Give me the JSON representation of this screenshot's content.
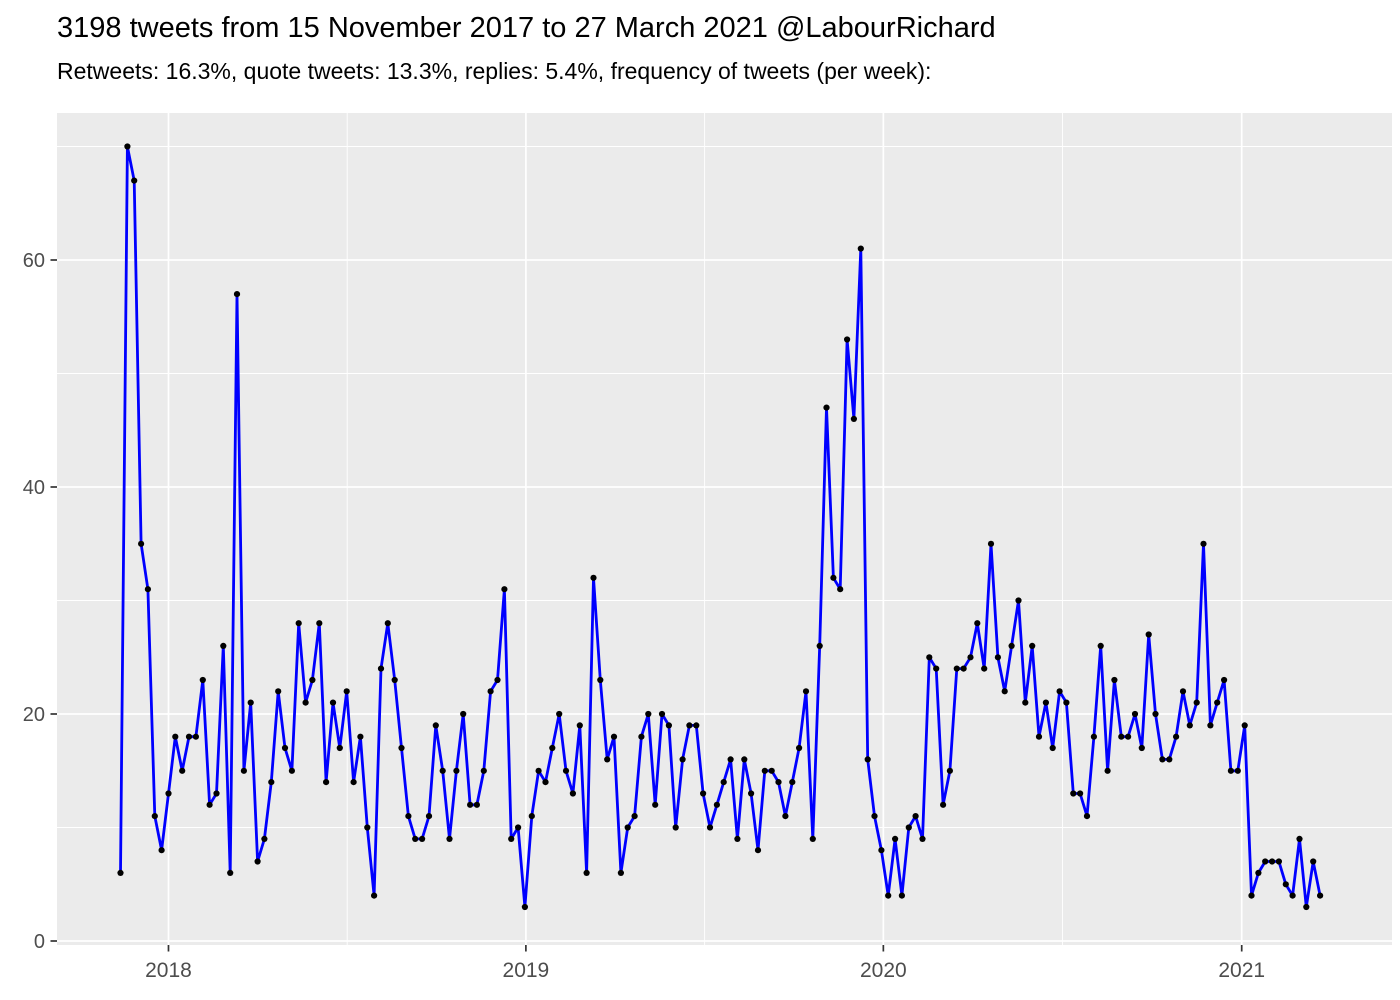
{
  "header": {
    "title": "3198 tweets from 15 November 2017 to 27 March 2021 @LabourRichard",
    "subtitle": "Retweets: 16.3%, quote tweets: 13.3%, replies: 5.4%, frequency of tweets (per week):"
  },
  "chart_data": {
    "type": "line",
    "title": "3198 tweets from 15 November 2017 to 27 March 2021 @LabourRichard",
    "subtitle": "Retweets: 16.3%, quote tweets: 13.3%, replies: 5.4%, frequency of tweets (per week):",
    "xlabel": "",
    "ylabel": "",
    "x_unit": "week",
    "grid": true,
    "legend": false,
    "x_tick_labels": [
      "2018",
      "2019",
      "2020",
      "2021"
    ],
    "x_tick_week_offsets": [
      7.0,
      59.14,
      111.29,
      163.57
    ],
    "x_minor_week_offsets": [
      33.07,
      85.21,
      137.43
    ],
    "y_ticks": [
      0,
      20,
      40,
      60
    ],
    "y_tick_labels": [
      "0",
      "20",
      "40",
      "60"
    ],
    "y_minor_ticks": [
      10,
      30,
      50,
      70
    ],
    "ylim": [
      0,
      73
    ],
    "series": [
      {
        "name": "frequency of tweets (per week)",
        "values": [
          6,
          70,
          67,
          35,
          31,
          11,
          8,
          13,
          18,
          15,
          18,
          18,
          23,
          12,
          13,
          26,
          6,
          57,
          15,
          21,
          7,
          9,
          14,
          22,
          17,
          15,
          28,
          21,
          23,
          28,
          14,
          21,
          17,
          22,
          14,
          18,
          10,
          4,
          24,
          28,
          23,
          17,
          11,
          9,
          9,
          11,
          19,
          15,
          9,
          15,
          20,
          12,
          12,
          15,
          22,
          23,
          31,
          9,
          10,
          3,
          11,
          15,
          14,
          17,
          20,
          15,
          13,
          19,
          6,
          32,
          23,
          16,
          18,
          6,
          10,
          11,
          18,
          20,
          12,
          20,
          19,
          10,
          16,
          19,
          19,
          13,
          10,
          12,
          14,
          16,
          9,
          16,
          13,
          8,
          15,
          15,
          14,
          11,
          14,
          17,
          22,
          9,
          26,
          47,
          32,
          31,
          53,
          46,
          61,
          16,
          11,
          8,
          4,
          9,
          4,
          10,
          11,
          9,
          25,
          24,
          12,
          15,
          24,
          24,
          25,
          28,
          24,
          35,
          25,
          22,
          26,
          30,
          21,
          26,
          18,
          21,
          17,
          22,
          21,
          13,
          13,
          11,
          18,
          26,
          15,
          23,
          18,
          18,
          20,
          17,
          27,
          20,
          16,
          16,
          18,
          22,
          19,
          21,
          35,
          19,
          21,
          23,
          15,
          15,
          19,
          4,
          6,
          7,
          7,
          7,
          5,
          4,
          9,
          3,
          7,
          4
        ]
      }
    ],
    "colors": {
      "line": "#0000FF",
      "point": "#000000",
      "panel": "#EBEBEB",
      "grid": "#FFFFFF",
      "axis_text": "#4D4D4D",
      "tick_mark": "#333333",
      "title_text": "#000000"
    }
  }
}
